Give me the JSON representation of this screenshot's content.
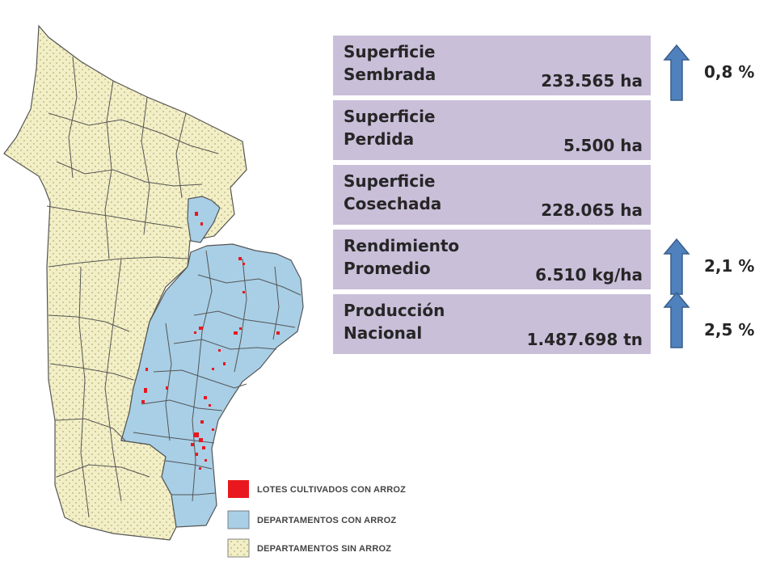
{
  "colors": {
    "rice_lots": "#ff0000",
    "depts_with_rice": "#a8cfe6",
    "depts_without_rice": "#f2efc6",
    "border": "#555555",
    "stat_box": "#c9bfd9",
    "arrow": "#4f81bd"
  },
  "legend": {
    "lotes": "LOTES CULTIVADOS CON ARROZ",
    "con_arroz": "DEPARTAMENTOS CON ARROZ",
    "sin_arroz": "DEPARTAMENTOS SIN ARROZ"
  },
  "stats": [
    {
      "line1": "Superficie",
      "line2": "Sembrada",
      "value": "233.565 ha"
    },
    {
      "line1": "Superficie",
      "line2": "Perdida",
      "value": "5.500 ha"
    },
    {
      "line1": "Superficie",
      "line2": "Cosechada",
      "value": "228.065 ha"
    },
    {
      "line1": "Rendimiento",
      "line2": "Promedio",
      "value": "6.510 kg/ha"
    },
    {
      "line1": "Producción",
      "line2": "Nacional",
      "value": "1.487.698 tn"
    }
  ],
  "changes": [
    {
      "value": "0,8 %",
      "icon": "up-arrow-icon"
    },
    {
      "value": "2,1 %",
      "icon": "up-arrow-icon"
    },
    {
      "value": "2,5 %",
      "icon": "up-arrow-icon"
    }
  ]
}
